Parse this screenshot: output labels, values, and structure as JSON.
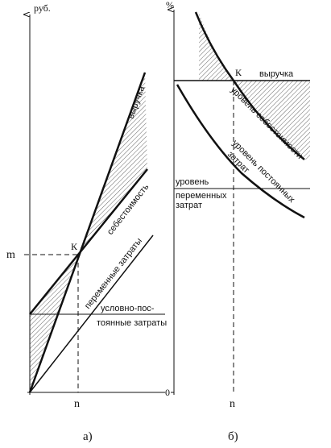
{
  "left_panel": {
    "y_unit": "руб.",
    "point": "К",
    "y_mark": "m",
    "x_mark": "n",
    "caption": "а)",
    "revenue": "выручка",
    "cost": "себестоимость",
    "variable": "переменные затраты",
    "fixed_line1": "условно-пос-",
    "fixed_line2": "тоянные затраты"
  },
  "right_panel": {
    "y_unit": "%",
    "point": "К",
    "origin": "0",
    "x_mark": "n",
    "caption": "б)",
    "revenue": "выручка",
    "cost_level": "уровень себестоимости",
    "fixed_level_line1": "уровень постоянных",
    "fixed_level_line2": "затрат",
    "variable_level_line1": "уровень",
    "variable_level_line2": "переменных",
    "variable_level_line3": "затрат"
  }
}
